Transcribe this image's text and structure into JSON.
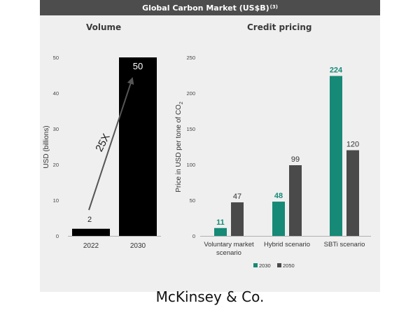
{
  "header": {
    "title": "Global Carbon Market (US$B)",
    "footnote": "(3)"
  },
  "footer": {
    "brand": "McKinsey & Co."
  },
  "chart_data": [
    {
      "type": "bar",
      "title": "Volume",
      "ylabel": "USD (billions)",
      "categories": [
        "2022",
        "2030"
      ],
      "values": [
        2,
        50
      ],
      "ylim": [
        0,
        50
      ],
      "yticks": [
        0,
        10,
        20,
        30,
        40,
        50
      ],
      "annotation": "25X",
      "bar_color": "#000000"
    },
    {
      "type": "bar",
      "title": "Credit pricing",
      "ylabel": "Price in USD per tone of CO",
      "ylabel_subscript": "2",
      "categories": [
        "Voluntary market scenario",
        "Hybrid scenario",
        "SBTi scenario"
      ],
      "series": [
        {
          "name": "2030",
          "values": [
            11,
            48,
            224
          ],
          "color": "#168a76"
        },
        {
          "name": "2050",
          "values": [
            47,
            99,
            120
          ],
          "color": "#4a4a4a"
        }
      ],
      "ylim": [
        0,
        250
      ],
      "yticks": [
        0,
        50,
        100,
        150,
        200,
        250
      ],
      "legend_position": "bottom"
    }
  ]
}
